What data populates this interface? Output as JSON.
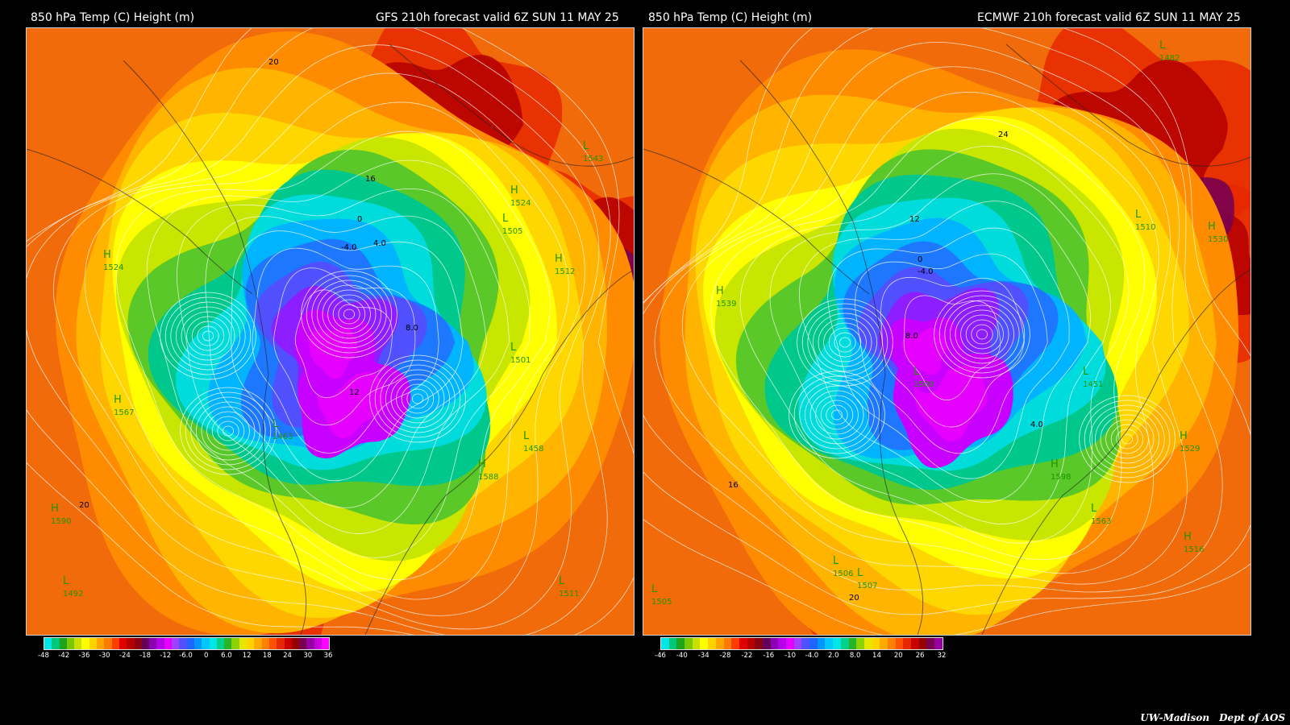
{
  "panels": [
    {
      "left_title": "850 hPa Temp (C) Height (m)",
      "right_title": "GFS 210h forecast valid 6Z SUN 11 MAY 25",
      "colorbar_ticks": [
        "-48",
        "-42",
        "-36",
        "-30",
        "-24",
        "-18",
        "-12",
        "-6.0",
        "0",
        "6.0",
        "12",
        "18",
        "24",
        "30",
        "36"
      ],
      "colorbar_colors": [
        "#00e5e5",
        "#00c87a",
        "#1ea31e",
        "#7ac800",
        "#c8e000",
        "#ffff00",
        "#ffd200",
        "#ffa500",
        "#ff7a00",
        "#ff3c00",
        "#e00000",
        "#b40000",
        "#8c0014",
        "#64005a",
        "#8c00b4",
        "#b400e6",
        "#e600ff",
        "#a040ff",
        "#5050ff",
        "#1e64ff",
        "#0096ff",
        "#00c8ff",
        "#00e6e6",
        "#00d28c",
        "#28b428",
        "#8cd200",
        "#e6e600",
        "#ffd200",
        "#ffaa00",
        "#ff8000",
        "#ff5000",
        "#e62800",
        "#c80000",
        "#960000",
        "#780050",
        "#9600a0",
        "#c800dc",
        "#ff00ff"
      ],
      "labels": [
        {
          "t": "H",
          "c": "lbl-H"
        },
        {
          "t": "1524",
          "c": "lbl-n"
        },
        {
          "t": "H",
          "c": "lbl-H"
        },
        {
          "t": "1567",
          "c": "lbl-n"
        },
        {
          "t": "H",
          "c": "lbl-H"
        },
        {
          "t": "1524",
          "c": "lbl-n"
        },
        {
          "t": "L",
          "c": "lbl-H"
        },
        {
          "t": "1505",
          "c": "lbl-n"
        },
        {
          "t": "H",
          "c": "lbl-H"
        },
        {
          "t": "1512",
          "c": "lbl-n"
        },
        {
          "t": "L",
          "c": "lbl-H"
        },
        {
          "t": "1458",
          "c": "lbl-n"
        },
        {
          "t": "H",
          "c": "lbl-H"
        },
        {
          "t": "1588",
          "c": "lbl-n"
        },
        {
          "t": "L",
          "c": "lbl-H"
        },
        {
          "t": "1492",
          "c": "lbl-n"
        },
        {
          "t": "L",
          "c": "lbl-H"
        },
        {
          "t": "1511",
          "c": "lbl-n"
        },
        {
          "t": "L",
          "c": "lbl-H"
        },
        {
          "t": "1463",
          "c": "lbl-n"
        },
        {
          "t": "H",
          "c": "lbl-H"
        },
        {
          "t": "1590",
          "c": "lbl-n"
        },
        {
          "t": "L",
          "c": "lbl-H"
        },
        {
          "t": "1543",
          "c": "lbl-n"
        },
        {
          "t": "L",
          "c": "lbl-H"
        },
        {
          "t": "1501",
          "c": "lbl-n"
        },
        {
          "t": "20",
          "c": "lbl-c"
        },
        {
          "t": "20",
          "c": "lbl-c"
        },
        {
          "t": "4.0",
          "c": "lbl-c"
        },
        {
          "t": "-4.0",
          "c": "lbl-c"
        },
        {
          "t": "8.0",
          "c": "lbl-c"
        },
        {
          "t": "16",
          "c": "lbl-c"
        },
        {
          "t": "0",
          "c": "lbl-c"
        },
        {
          "t": "12",
          "c": "lbl-c"
        }
      ]
    },
    {
      "left_title": "850 hPa Temp (C) Height (m)",
      "right_title": "ECMWF 210h forecast valid 6Z SUN 11 MAY 25",
      "colorbar_ticks": [
        "-46",
        "-40",
        "-34",
        "-28",
        "-22",
        "-16",
        "-10",
        "-4.0",
        "2.0",
        "8.0",
        "14",
        "20",
        "26",
        "32"
      ],
      "colorbar_colors": [
        "#00e5e5",
        "#00c87a",
        "#1ea31e",
        "#7ac800",
        "#c8e000",
        "#ffff00",
        "#ffd200",
        "#ffa500",
        "#ff7a00",
        "#ff3c00",
        "#e00000",
        "#b40000",
        "#8c0014",
        "#64005a",
        "#8c00b4",
        "#b400e6",
        "#e600ff",
        "#a040ff",
        "#5050ff",
        "#1e64ff",
        "#0096ff",
        "#00c8ff",
        "#00e6e6",
        "#00d28c",
        "#28b428",
        "#8cd200",
        "#e6e600",
        "#ffd200",
        "#ffaa00",
        "#ff8000",
        "#ff5000",
        "#e62800",
        "#c80000",
        "#960000",
        "#780050",
        "#9600a0"
      ],
      "labels": [
        {
          "t": "H",
          "c": "lbl-H"
        },
        {
          "t": "1539",
          "c": "lbl-n"
        },
        {
          "t": "H",
          "c": "lbl-H"
        },
        {
          "t": "1529",
          "c": "lbl-n"
        },
        {
          "t": "H",
          "c": "lbl-H"
        },
        {
          "t": "1598",
          "c": "lbl-n"
        },
        {
          "t": "L",
          "c": "lbl-H"
        },
        {
          "t": "1563",
          "c": "lbl-n"
        },
        {
          "t": "L",
          "c": "lbl-H"
        },
        {
          "t": "1506",
          "c": "lbl-n"
        },
        {
          "t": "L",
          "c": "lbl-H"
        },
        {
          "t": "1507",
          "c": "lbl-n"
        },
        {
          "t": "H",
          "c": "lbl-H"
        },
        {
          "t": "1530",
          "c": "lbl-n"
        },
        {
          "t": "L",
          "c": "lbl-H"
        },
        {
          "t": "1451",
          "c": "lbl-n"
        },
        {
          "t": "L",
          "c": "lbl-H"
        },
        {
          "t": "1482",
          "c": "lbl-n"
        },
        {
          "t": "L",
          "c": "lbl-H"
        },
        {
          "t": "1510",
          "c": "lbl-n"
        },
        {
          "t": "H",
          "c": "lbl-H"
        },
        {
          "t": "1516",
          "c": "lbl-n"
        },
        {
          "t": "L",
          "c": "lbl-H"
        },
        {
          "t": "1505",
          "c": "lbl-n"
        },
        {
          "t": "L",
          "c": "lbl-H"
        },
        {
          "t": "1500",
          "c": "lbl-n"
        },
        {
          "t": "16",
          "c": "lbl-c"
        },
        {
          "t": "20",
          "c": "lbl-c"
        },
        {
          "t": "4.0",
          "c": "lbl-c"
        },
        {
          "t": "-4.0",
          "c": "lbl-c"
        },
        {
          "t": "8.0",
          "c": "lbl-c"
        },
        {
          "t": "0",
          "c": "lbl-c"
        },
        {
          "t": "24",
          "c": "lbl-c"
        },
        {
          "t": "12",
          "c": "lbl-c"
        }
      ]
    }
  ],
  "credit": {
    "org": "UW-Madison",
    "dept": "Dept of AOS"
  }
}
